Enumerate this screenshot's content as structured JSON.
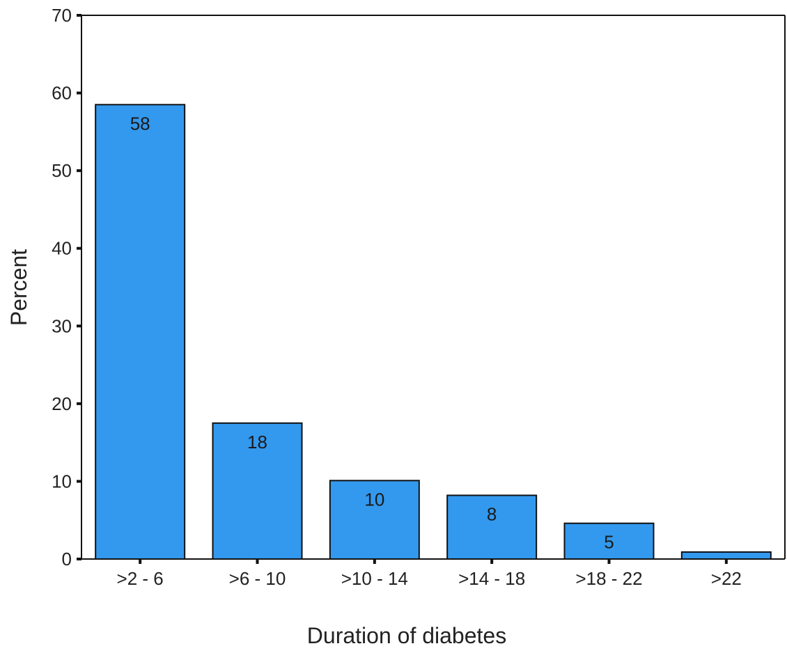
{
  "chart_data": {
    "type": "bar",
    "title": "",
    "xlabel": "Duration of diabetes",
    "ylabel": "Percent",
    "ylim": [
      0,
      70
    ],
    "yticks": [
      0,
      10,
      20,
      30,
      40,
      50,
      60,
      70
    ],
    "grid": false,
    "legend": "none",
    "categories": [
      ">2 - 6",
      ">6 - 10",
      ">10 - 14",
      ">14 - 18",
      ">18 - 22",
      ">22"
    ],
    "values": [
      58.5,
      17.5,
      10.1,
      8.2,
      4.6,
      0.9
    ],
    "data_labels": [
      "58",
      "18",
      "10",
      "8",
      "5",
      ""
    ],
    "bar_color": "#3399ee",
    "outline_color": "#111111"
  }
}
